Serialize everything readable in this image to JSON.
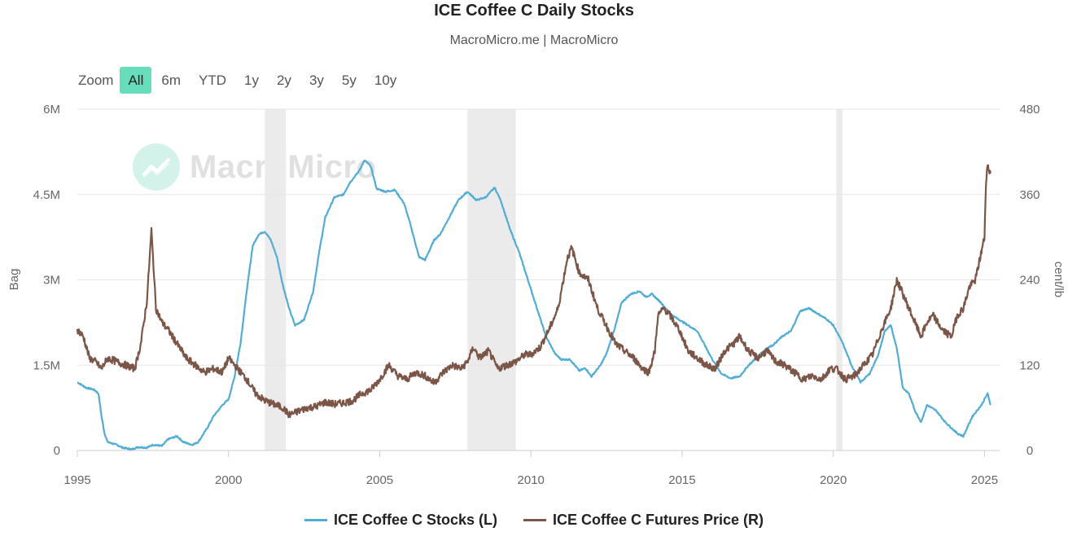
{
  "title": "ICE Coffee C Daily Stocks",
  "subtitle": "MacroMicro.me | MacroMicro",
  "watermark": "MacroMicro",
  "zoom": {
    "label": "Zoom",
    "buttons": [
      "All",
      "6m",
      "YTD",
      "1y",
      "2y",
      "3y",
      "5y",
      "10y"
    ],
    "active": "All"
  },
  "chart_data": {
    "type": "line",
    "title": "ICE Coffee C Daily Stocks",
    "x_range": [
      1995,
      2025.5
    ],
    "x_ticks": [
      "1995",
      "2000",
      "2005",
      "2010",
      "2015",
      "2020",
      "2025"
    ],
    "x_tick_values": [
      1995,
      2000,
      2005,
      2010,
      2015,
      2020,
      2025
    ],
    "y_left": {
      "label": "Bag",
      "range": [
        0,
        6000000
      ],
      "ticks": [
        "0",
        "1.5M",
        "3M",
        "4.5M",
        "6M"
      ],
      "tick_values": [
        0,
        1500000,
        3000000,
        4500000,
        6000000
      ]
    },
    "y_right": {
      "label": "cent/lb",
      "range": [
        0,
        480
      ],
      "ticks": [
        "0",
        "120",
        "240",
        "360",
        "480"
      ],
      "tick_values": [
        0,
        120,
        240,
        360,
        480
      ]
    },
    "grid": true,
    "legend_position": "bottom",
    "shaded_periods": [
      [
        2001.2,
        2001.9
      ],
      [
        2007.9,
        2009.5
      ],
      [
        2020.1,
        2020.3
      ]
    ],
    "series": [
      {
        "name": "ICE Coffee C Stocks (L)",
        "axis": "left",
        "color": "#4fadd6",
        "x": [
          1995.0,
          1995.3,
          1995.5,
          1995.6,
          1995.7,
          1995.8,
          1995.9,
          1996.0,
          1996.3,
          1996.5,
          1996.8,
          1997.0,
          1997.3,
          1997.5,
          1997.8,
          1998.0,
          1998.3,
          1998.5,
          1998.8,
          1999.0,
          1999.3,
          1999.5,
          1999.8,
          2000.0,
          2000.2,
          2000.4,
          2000.6,
          2000.8,
          2001.0,
          2001.2,
          2001.4,
          2001.6,
          2001.8,
          2002.0,
          2002.2,
          2002.5,
          2002.8,
          2003.0,
          2003.2,
          2003.5,
          2003.8,
          2004.0,
          2004.3,
          2004.5,
          2004.7,
          2004.9,
          2005.2,
          2005.5,
          2005.8,
          2006.0,
          2006.3,
          2006.5,
          2006.8,
          2007.0,
          2007.3,
          2007.6,
          2007.9,
          2008.2,
          2008.5,
          2008.8,
          2009.0,
          2009.3,
          2009.6,
          2009.9,
          2010.2,
          2010.5,
          2010.8,
          2011.0,
          2011.3,
          2011.6,
          2011.8,
          2012.0,
          2012.3,
          2012.5,
          2012.8,
          2013.0,
          2013.3,
          2013.6,
          2013.8,
          2014.0,
          2014.3,
          2014.6,
          2014.9,
          2015.2,
          2015.5,
          2015.8,
          2016.0,
          2016.3,
          2016.6,
          2016.9,
          2017.2,
          2017.5,
          2017.8,
          2018.0,
          2018.3,
          2018.6,
          2018.9,
          2019.2,
          2019.5,
          2019.8,
          2020.0,
          2020.3,
          2020.6,
          2020.9,
          2021.2,
          2021.5,
          2021.7,
          2021.9,
          2022.1,
          2022.3,
          2022.5,
          2022.7,
          2022.9,
          2023.1,
          2023.4,
          2023.7,
          2023.9,
          2024.1,
          2024.3,
          2024.6,
          2024.9,
          2025.0,
          2025.1,
          2025.2
        ],
        "y": [
          1200000,
          1100000,
          1080000,
          1050000,
          1000000,
          600000,
          300000,
          150000,
          100000,
          50000,
          20000,
          60000,
          50000,
          100000,
          80000,
          200000,
          250000,
          150000,
          100000,
          150000,
          400000,
          600000,
          800000,
          900000,
          1300000,
          1900000,
          2800000,
          3600000,
          3800000,
          3850000,
          3700000,
          3400000,
          2900000,
          2500000,
          2200000,
          2300000,
          2800000,
          3500000,
          4100000,
          4450000,
          4500000,
          4700000,
          4900000,
          5100000,
          5000000,
          4600000,
          4550000,
          4580000,
          4350000,
          4000000,
          3400000,
          3350000,
          3700000,
          3800000,
          4100000,
          4400000,
          4550000,
          4400000,
          4450000,
          4620000,
          4400000,
          3900000,
          3500000,
          3000000,
          2500000,
          2000000,
          1700000,
          1600000,
          1600000,
          1400000,
          1450000,
          1300000,
          1500000,
          1700000,
          2200000,
          2600000,
          2750000,
          2800000,
          2700000,
          2750000,
          2600000,
          2400000,
          2300000,
          2200000,
          2100000,
          1800000,
          1600000,
          1350000,
          1270000,
          1300000,
          1500000,
          1650000,
          1800000,
          1850000,
          2000000,
          2100000,
          2450000,
          2500000,
          2400000,
          2300000,
          2200000,
          1900000,
          1500000,
          1200000,
          1350000,
          1700000,
          2100000,
          2200000,
          1800000,
          1100000,
          1000000,
          700000,
          500000,
          800000,
          700000,
          500000,
          400000,
          300000,
          250000,
          600000,
          800000,
          900000,
          1000000,
          800000
        ],
        "noise": 12000
      },
      {
        "name": "ICE Coffee C Futures Price (R)",
        "axis": "right",
        "color": "#7d5547",
        "x": [
          1995.0,
          1995.2,
          1995.4,
          1995.6,
          1995.8,
          1996.0,
          1996.3,
          1996.6,
          1996.9,
          1997.1,
          1997.3,
          1997.45,
          1997.6,
          1997.8,
          1998.0,
          1998.3,
          1998.6,
          1998.9,
          1999.2,
          1999.5,
          1999.8,
          2000.0,
          2000.3,
          2000.6,
          2000.9,
          2001.2,
          2001.5,
          2001.8,
          2002.0,
          2002.3,
          2002.6,
          2002.9,
          2003.2,
          2003.5,
          2003.8,
          2004.1,
          2004.4,
          2004.7,
          2005.0,
          2005.3,
          2005.6,
          2005.9,
          2006.2,
          2006.5,
          2006.8,
          2007.1,
          2007.4,
          2007.7,
          2007.9,
          2008.1,
          2008.3,
          2008.6,
          2008.9,
          2009.2,
          2009.5,
          2009.8,
          2010.0,
          2010.3,
          2010.6,
          2010.9,
          2011.2,
          2011.35,
          2011.6,
          2011.9,
          2012.2,
          2012.5,
          2012.8,
          2013.1,
          2013.4,
          2013.7,
          2013.9,
          2014.1,
          2014.2,
          2014.4,
          2014.6,
          2014.9,
          2015.2,
          2015.5,
          2015.8,
          2016.1,
          2016.4,
          2016.7,
          2016.9,
          2017.2,
          2017.5,
          2017.8,
          2018.1,
          2018.4,
          2018.7,
          2019.0,
          2019.3,
          2019.6,
          2019.9,
          2020.1,
          2020.4,
          2020.7,
          2021.0,
          2021.3,
          2021.6,
          2021.9,
          2022.1,
          2022.3,
          2022.5,
          2022.7,
          2022.9,
          2023.1,
          2023.3,
          2023.6,
          2023.9,
          2024.1,
          2024.3,
          2024.5,
          2024.7,
          2024.9,
          2025.0,
          2025.05,
          2025.1,
          2025.2
        ],
        "y": [
          170,
          160,
          130,
          125,
          115,
          130,
          125,
          120,
          115,
          150,
          210,
          310,
          200,
          180,
          170,
          150,
          130,
          120,
          110,
          115,
          110,
          130,
          115,
          100,
          80,
          70,
          65,
          60,
          50,
          55,
          60,
          62,
          68,
          65,
          67,
          70,
          80,
          85,
          100,
          120,
          105,
          100,
          110,
          105,
          95,
          110,
          120,
          115,
          125,
          145,
          130,
          140,
          115,
          120,
          125,
          135,
          135,
          145,
          170,
          200,
          270,
          285,
          250,
          240,
          200,
          175,
          150,
          140,
          130,
          115,
          110,
          140,
          190,
          200,
          190,
          170,
          140,
          130,
          120,
          115,
          140,
          150,
          160,
          140,
          130,
          140,
          125,
          120,
          110,
          100,
          105,
          100,
          115,
          115,
          100,
          105,
          120,
          135,
          170,
          200,
          240,
          220,
          200,
          180,
          160,
          180,
          190,
          170,
          160,
          190,
          200,
          230,
          240,
          280,
          300,
          380,
          400,
          390
        ],
        "noise": 5
      }
    ]
  }
}
